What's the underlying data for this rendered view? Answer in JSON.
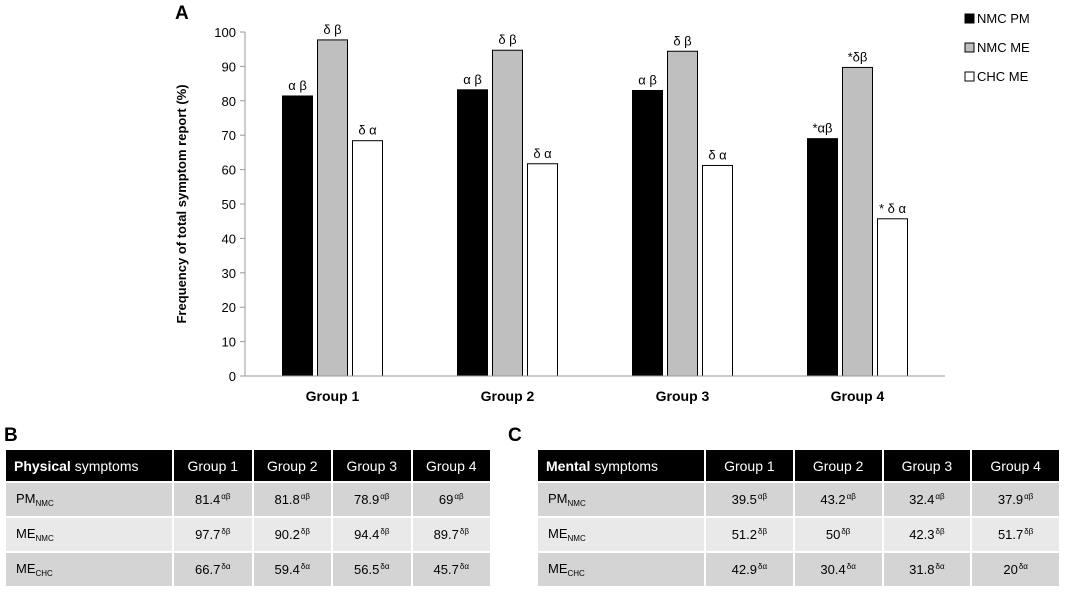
{
  "chart_data": {
    "type": "bar",
    "panel_label": "A",
    "ylabel": "Frequency of total symptom report  (%)",
    "xlabel": "",
    "ylim": [
      0,
      100
    ],
    "yticks": [
      0,
      10,
      20,
      30,
      40,
      50,
      60,
      70,
      80,
      90,
      100
    ],
    "grid": false,
    "legend_position": "top-right",
    "categories": [
      "Group 1",
      "Group 2",
      "Group 3",
      "Group 4"
    ],
    "series": [
      {
        "name": "NMC PM",
        "color": "#000000",
        "values": [
          81.4,
          83.2,
          83.0,
          69.0
        ],
        "annotations": [
          "α β",
          "α β",
          "α β",
          "*αβ"
        ]
      },
      {
        "name": "NMC ME",
        "color": "#bfbfbf",
        "values": [
          97.7,
          94.7,
          94.4,
          89.7
        ],
        "annotations": [
          "δ β",
          "δ β",
          "δ β",
          "*δβ"
        ]
      },
      {
        "name": "CHC ME",
        "color": "#ffffff",
        "values": [
          68.4,
          61.7,
          61.2,
          45.7
        ],
        "annotations": [
          "δ α",
          "δ α",
          "δ α",
          "* δ α"
        ]
      }
    ]
  },
  "table_b": {
    "panel_label": "B",
    "header_bold": "Physical",
    "header_rest": " symptoms",
    "columns": [
      "Group 1",
      "Group 2",
      "Group 3",
      "Group 4"
    ],
    "rows": [
      {
        "base": "PM",
        "sub": "NMC",
        "cells": [
          {
            "v": "81.4",
            "s": "αβ"
          },
          {
            "v": "81.8",
            "s": "αβ"
          },
          {
            "v": "78.9",
            "s": "αβ"
          },
          {
            "v": "69",
            "s": "αβ"
          }
        ]
      },
      {
        "base": "ME",
        "sub": "NMC",
        "cells": [
          {
            "v": "97.7",
            "s": "δβ"
          },
          {
            "v": "90.2",
            "s": "δβ"
          },
          {
            "v": "94.4",
            "s": "δβ"
          },
          {
            "v": "89.7",
            "s": "δβ"
          }
        ]
      },
      {
        "base": "ME",
        "sub": "CHC",
        "cells": [
          {
            "v": "66.7",
            "s": "δα"
          },
          {
            "v": "59.4",
            "s": "δα"
          },
          {
            "v": "56.5",
            "s": "δα"
          },
          {
            "v": "45.7",
            "s": "δα"
          }
        ]
      }
    ]
  },
  "table_c": {
    "panel_label": "C",
    "header_bold": "Mental",
    "header_rest": " symptoms",
    "columns": [
      "Group 1",
      "Group 2",
      "Group 3",
      "Group 4"
    ],
    "rows": [
      {
        "base": "PM",
        "sub": "NMC",
        "cells": [
          {
            "v": "39.5",
            "s": "αβ"
          },
          {
            "v": "43.2",
            "s": "αβ"
          },
          {
            "v": "32.4",
            "s": "αβ"
          },
          {
            "v": "37.9",
            "s": "αβ"
          }
        ]
      },
      {
        "base": "ME",
        "sub": "NMC",
        "cells": [
          {
            "v": "51.2",
            "s": "δβ"
          },
          {
            "v": "50",
            "s": "δβ"
          },
          {
            "v": "42.3",
            "s": "δβ"
          },
          {
            "v": "51.7",
            "s": "δβ"
          }
        ]
      },
      {
        "base": "ME",
        "sub": "CHC",
        "cells": [
          {
            "v": "42.9",
            "s": "δα"
          },
          {
            "v": "30.4",
            "s": "δα"
          },
          {
            "v": "31.8",
            "s": "δα"
          },
          {
            "v": "20",
            "s": "δα"
          }
        ]
      }
    ]
  }
}
